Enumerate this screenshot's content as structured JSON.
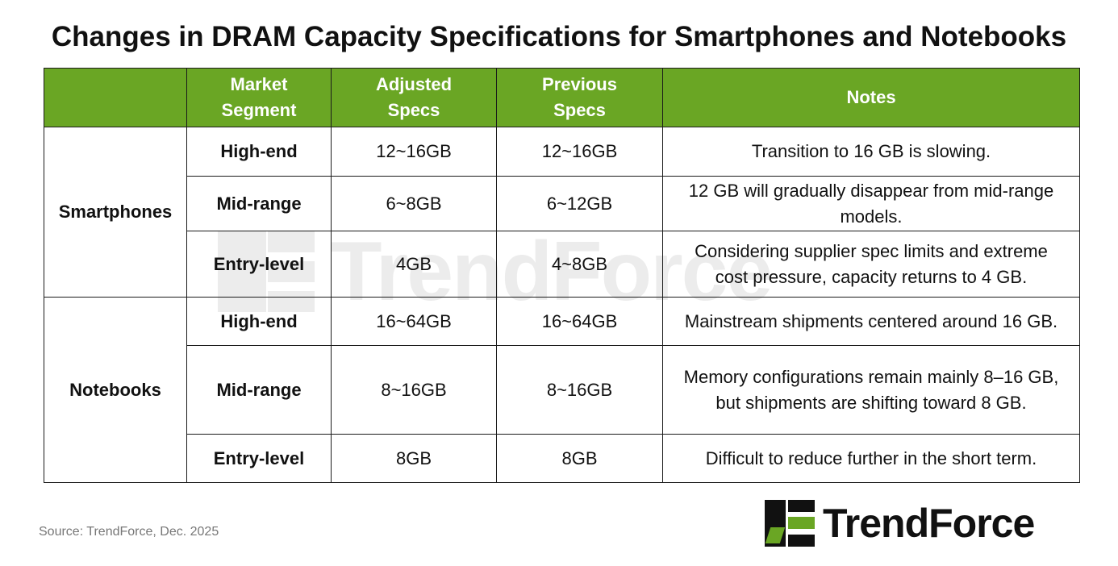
{
  "title": "Changes in DRAM Capacity Specifications for Smartphones and Notebooks",
  "table": {
    "headers": {
      "category": "",
      "segment_line1": "Market",
      "segment_line2": "Segment",
      "adjusted_line1": "Adjusted",
      "adjusted_line2": "Specs",
      "previous_line1": "Previous",
      "previous_line2": "Specs",
      "notes": "Notes"
    },
    "groups": [
      {
        "category": "Smartphones",
        "rows": [
          {
            "segment": "High-end",
            "adjusted": "12~16GB",
            "previous": "12~16GB",
            "notes_line1": "Transition to 16 GB is slowing.",
            "notes_line2": ""
          },
          {
            "segment": "Mid-range",
            "adjusted": "6~8GB",
            "previous": "6~12GB",
            "notes_line1": "12 GB will gradually disappear from mid-range",
            "notes_line2": "models."
          },
          {
            "segment": "Entry-level",
            "adjusted": "4GB",
            "previous": "4~8GB",
            "notes_line1": "Considering supplier spec limits and extreme",
            "notes_line2": "cost pressure, capacity returns to 4 GB."
          }
        ]
      },
      {
        "category": "Notebooks",
        "rows": [
          {
            "segment": "High-end",
            "adjusted": "16~64GB",
            "previous": "16~64GB",
            "notes_line1": "Mainstream shipments centered around 16 GB.",
            "notes_line2": ""
          },
          {
            "segment": "Mid-range",
            "adjusted": "8~16GB",
            "previous": "8~16GB",
            "notes_line1": "Memory configurations remain mainly 8–16 GB,",
            "notes_line2": "but shipments are shifting toward 8 GB."
          },
          {
            "segment": "Entry-level",
            "adjusted": "8GB",
            "previous": "8GB",
            "notes_line1": "Difficult to reduce further in the short term.",
            "notes_line2": ""
          }
        ]
      }
    ]
  },
  "colors": {
    "header_bg": "#6aa624",
    "header_text": "#ffffff",
    "logo_green": "#6aa624",
    "logo_dark": "#111111"
  },
  "watermark": {
    "text": "TrendForce"
  },
  "source": "Source: TrendForce,  Dec. 2025",
  "logo": {
    "text": "TrendForce",
    "icon": "trendforce-logo-icon"
  }
}
